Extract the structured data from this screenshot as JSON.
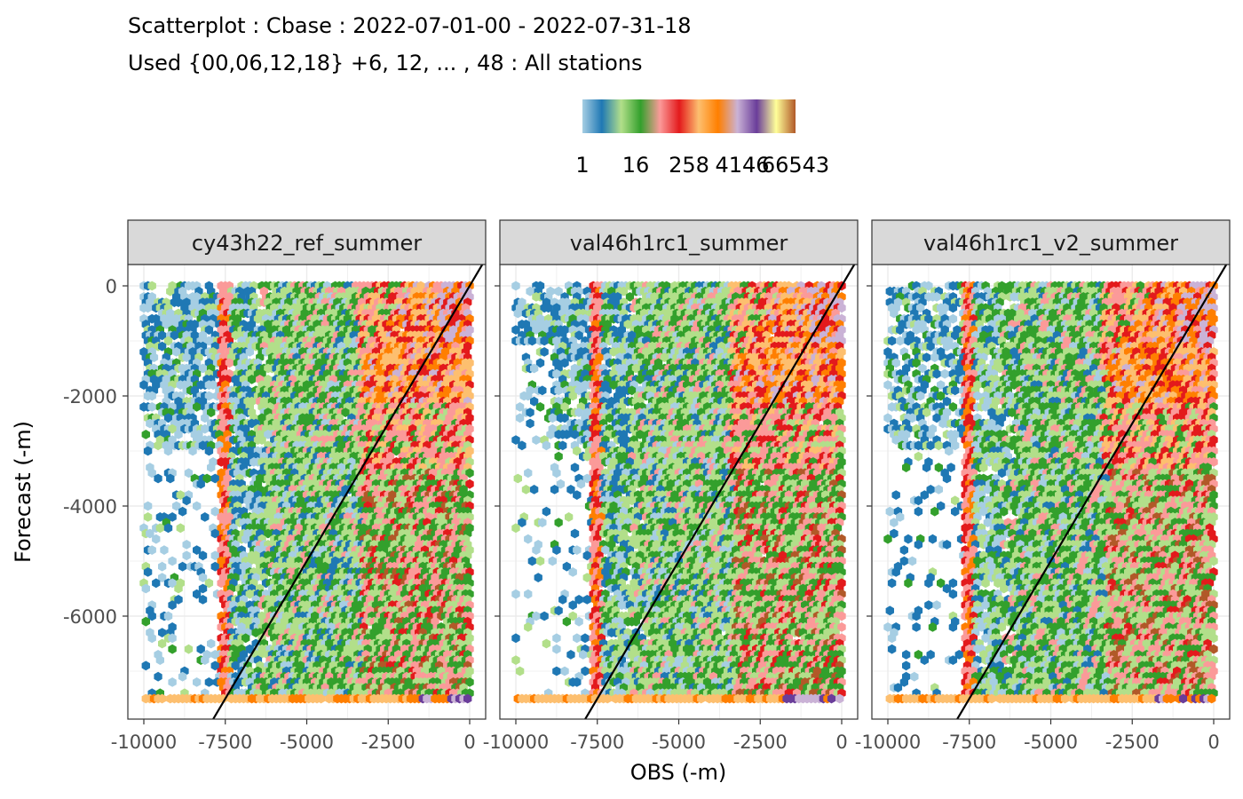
{
  "chart_data": {
    "type": "heatmap",
    "subtype": "hexbin-scatter",
    "title": "Scatterplot : Cbase : 2022-07-01-00 - 2022-07-31-18",
    "subtitle": "Used {00,06,12,18} +6, 12, ... , 48 : All stations",
    "xlabel": "OBS (-m)",
    "ylabel": "Forecast (-m)",
    "xlim": [
      -10000,
      0
    ],
    "ylim": [
      -7500,
      0
    ],
    "x_ticks": [
      -10000,
      -7500,
      -5000,
      -2500,
      0
    ],
    "x_tick_labels": [
      "-10000",
      "-7500",
      "-5000",
      "-2500",
      "0"
    ],
    "y_ticks": [
      0,
      -2000,
      -4000,
      -6000
    ],
    "y_tick_labels": [
      "0",
      "-2000",
      "-4000",
      "-6000"
    ],
    "grid": true,
    "reference_line": "y = x",
    "legend": {
      "placement": "top",
      "type": "colorbar",
      "tick_labels": [
        "1",
        "16",
        "258",
        "4146",
        "66543"
      ],
      "colors": [
        "#a6cee3",
        "#1f78b4",
        "#b2df8a",
        "#33a02c",
        "#fb9a99",
        "#e31a1c",
        "#fdbf6f",
        "#ff7f00",
        "#cab2d6",
        "#6a3d9a",
        "#ffff99",
        "#b15928"
      ]
    },
    "panels": [
      {
        "name": "cy43h22_ref_summer"
      },
      {
        "name": "val46h1rc1_summer"
      },
      {
        "name": "val46h1rc1_v2_summer"
      }
    ]
  }
}
